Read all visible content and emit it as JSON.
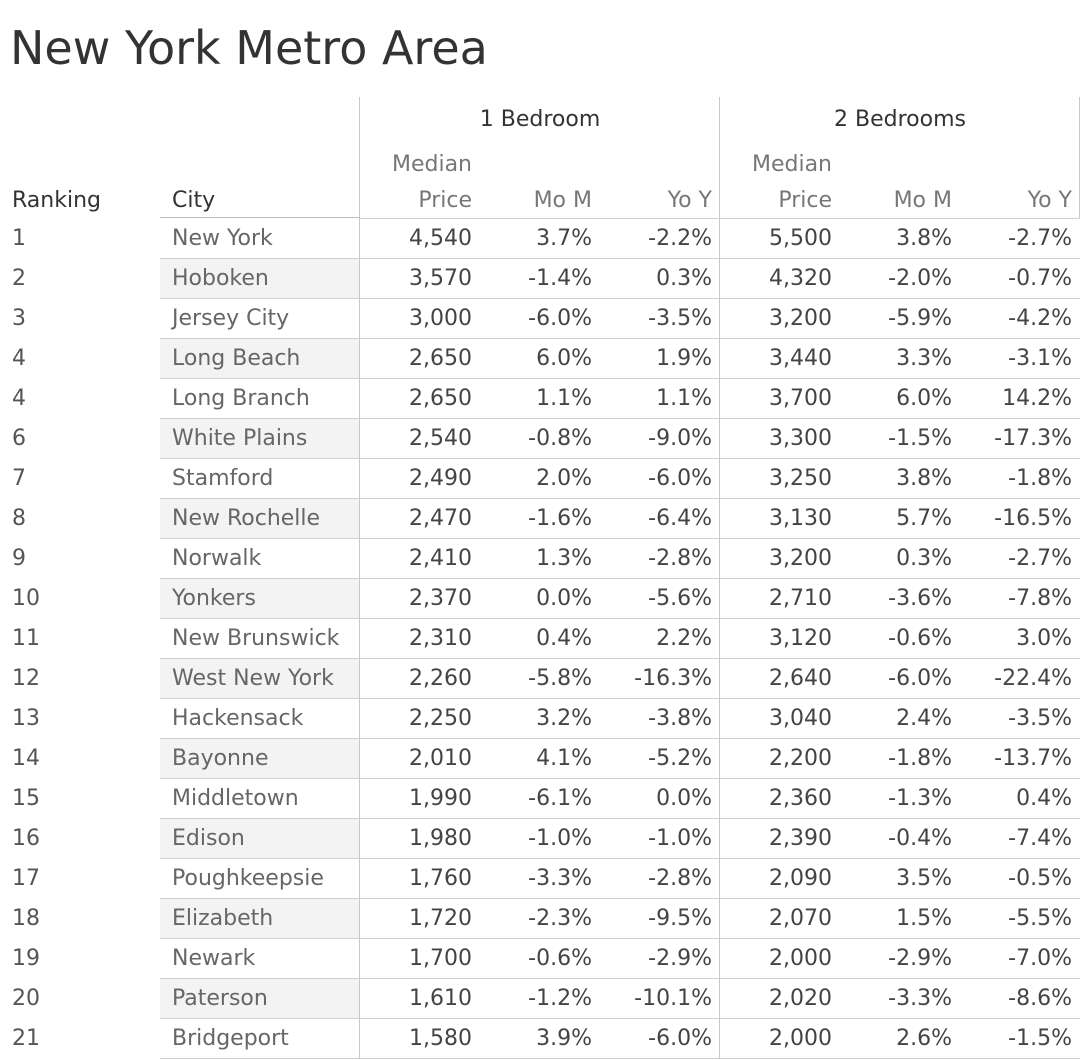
{
  "title": "New York Metro Area",
  "chart_data": {
    "type": "table",
    "title": "New York Metro Area",
    "groups": [
      "1 Bedroom",
      "2 Bedrooms"
    ],
    "columns": {
      "ranking": "Ranking",
      "city": "City",
      "median_line1": "Median",
      "median_line2": "Price",
      "mom": "Mo M",
      "yoy": "Yo Y"
    },
    "rows": [
      {
        "rank": "1",
        "city": "New York",
        "b1_price": "4,540",
        "b1_mom": "3.7%",
        "b1_yoy": "-2.2%",
        "b2_price": "5,500",
        "b2_mom": "3.8%",
        "b2_yoy": "-2.7%"
      },
      {
        "rank": "2",
        "city": "Hoboken",
        "b1_price": "3,570",
        "b1_mom": "-1.4%",
        "b1_yoy": "0.3%",
        "b2_price": "4,320",
        "b2_mom": "-2.0%",
        "b2_yoy": "-0.7%"
      },
      {
        "rank": "3",
        "city": "Jersey City",
        "b1_price": "3,000",
        "b1_mom": "-6.0%",
        "b1_yoy": "-3.5%",
        "b2_price": "3,200",
        "b2_mom": "-5.9%",
        "b2_yoy": "-4.2%"
      },
      {
        "rank": "4",
        "city": "Long Beach",
        "b1_price": "2,650",
        "b1_mom": "6.0%",
        "b1_yoy": "1.9%",
        "b2_price": "3,440",
        "b2_mom": "3.3%",
        "b2_yoy": "-3.1%"
      },
      {
        "rank": "4",
        "city": "Long Branch",
        "b1_price": "2,650",
        "b1_mom": "1.1%",
        "b1_yoy": "1.1%",
        "b2_price": "3,700",
        "b2_mom": "6.0%",
        "b2_yoy": "14.2%"
      },
      {
        "rank": "6",
        "city": "White Plains",
        "b1_price": "2,540",
        "b1_mom": "-0.8%",
        "b1_yoy": "-9.0%",
        "b2_price": "3,300",
        "b2_mom": "-1.5%",
        "b2_yoy": "-17.3%"
      },
      {
        "rank": "7",
        "city": "Stamford",
        "b1_price": "2,490",
        "b1_mom": "2.0%",
        "b1_yoy": "-6.0%",
        "b2_price": "3,250",
        "b2_mom": "3.8%",
        "b2_yoy": "-1.8%"
      },
      {
        "rank": "8",
        "city": "New Rochelle",
        "b1_price": "2,470",
        "b1_mom": "-1.6%",
        "b1_yoy": "-6.4%",
        "b2_price": "3,130",
        "b2_mom": "5.7%",
        "b2_yoy": "-16.5%"
      },
      {
        "rank": "9",
        "city": "Norwalk",
        "b1_price": "2,410",
        "b1_mom": "1.3%",
        "b1_yoy": "-2.8%",
        "b2_price": "3,200",
        "b2_mom": "0.3%",
        "b2_yoy": "-2.7%"
      },
      {
        "rank": "10",
        "city": "Yonkers",
        "b1_price": "2,370",
        "b1_mom": "0.0%",
        "b1_yoy": "-5.6%",
        "b2_price": "2,710",
        "b2_mom": "-3.6%",
        "b2_yoy": "-7.8%"
      },
      {
        "rank": "11",
        "city": "New Brunswick",
        "b1_price": "2,310",
        "b1_mom": "0.4%",
        "b1_yoy": "2.2%",
        "b2_price": "3,120",
        "b2_mom": "-0.6%",
        "b2_yoy": "3.0%"
      },
      {
        "rank": "12",
        "city": "West New York",
        "b1_price": "2,260",
        "b1_mom": "-5.8%",
        "b1_yoy": "-16.3%",
        "b2_price": "2,640",
        "b2_mom": "-6.0%",
        "b2_yoy": "-22.4%"
      },
      {
        "rank": "13",
        "city": "Hackensack",
        "b1_price": "2,250",
        "b1_mom": "3.2%",
        "b1_yoy": "-3.8%",
        "b2_price": "3,040",
        "b2_mom": "2.4%",
        "b2_yoy": "-3.5%"
      },
      {
        "rank": "14",
        "city": "Bayonne",
        "b1_price": "2,010",
        "b1_mom": "4.1%",
        "b1_yoy": "-5.2%",
        "b2_price": "2,200",
        "b2_mom": "-1.8%",
        "b2_yoy": "-13.7%"
      },
      {
        "rank": "15",
        "city": "Middletown",
        "b1_price": "1,990",
        "b1_mom": "-6.1%",
        "b1_yoy": "0.0%",
        "b2_price": "2,360",
        "b2_mom": "-1.3%",
        "b2_yoy": "0.4%"
      },
      {
        "rank": "16",
        "city": "Edison",
        "b1_price": "1,980",
        "b1_mom": "-1.0%",
        "b1_yoy": "-1.0%",
        "b2_price": "2,390",
        "b2_mom": "-0.4%",
        "b2_yoy": "-7.4%"
      },
      {
        "rank": "17",
        "city": "Poughkeepsie",
        "b1_price": "1,760",
        "b1_mom": "-3.3%",
        "b1_yoy": "-2.8%",
        "b2_price": "2,090",
        "b2_mom": "3.5%",
        "b2_yoy": "-0.5%"
      },
      {
        "rank": "18",
        "city": "Elizabeth",
        "b1_price": "1,720",
        "b1_mom": "-2.3%",
        "b1_yoy": "-9.5%",
        "b2_price": "2,070",
        "b2_mom": "1.5%",
        "b2_yoy": "-5.5%"
      },
      {
        "rank": "19",
        "city": "Newark",
        "b1_price": "1,700",
        "b1_mom": "-0.6%",
        "b1_yoy": "-2.9%",
        "b2_price": "2,000",
        "b2_mom": "-2.9%",
        "b2_yoy": "-7.0%"
      },
      {
        "rank": "20",
        "city": "Paterson",
        "b1_price": "1,610",
        "b1_mom": "-1.2%",
        "b1_yoy": "-10.1%",
        "b2_price": "2,020",
        "b2_mom": "-3.3%",
        "b2_yoy": "-8.6%"
      },
      {
        "rank": "21",
        "city": "Bridgeport",
        "b1_price": "1,580",
        "b1_mom": "3.9%",
        "b1_yoy": "-6.0%",
        "b2_price": "2,000",
        "b2_mom": "2.6%",
        "b2_yoy": "-1.5%"
      }
    ]
  }
}
